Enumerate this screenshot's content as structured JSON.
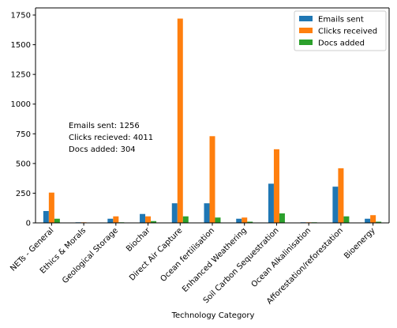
{
  "chart_data": {
    "type": "bar",
    "xlabel": "Technology Category",
    "ylabel": "",
    "title": "",
    "ylim": [
      0,
      1810
    ],
    "yticks": [
      0,
      250,
      500,
      750,
      1000,
      1250,
      1500,
      1750
    ],
    "categories": [
      "NETs - General",
      "Ethics & Morals",
      "Geological Storage",
      "Biochar",
      "Direct Air Capture",
      "Ocean fertilisation",
      "Enhanced Weathering",
      "Soil Carbon Sequestration",
      "Ocean Alkalinisation",
      "Afforestation/reforestation",
      "Bioenergy"
    ],
    "series": [
      {
        "name": "Emails sent",
        "color": "#1f77b4",
        "values": [
          100,
          5,
          35,
          75,
          165,
          165,
          35,
          330,
          5,
          305,
          35
        ]
      },
      {
        "name": "Clicks received",
        "color": "#ff7f0e",
        "values": [
          255,
          5,
          55,
          55,
          1720,
          730,
          45,
          620,
          5,
          460,
          65
        ]
      },
      {
        "name": "Docs added",
        "color": "#2ca02c",
        "values": [
          35,
          0,
          5,
          15,
          55,
          45,
          10,
          80,
          5,
          55,
          10
        ]
      }
    ],
    "legend_position": "top-right",
    "grid": false,
    "annotation": {
      "lines": [
        "Emails sent: 1256",
        "Clicks recieved: 4011",
        "Docs added: 304"
      ]
    }
  }
}
